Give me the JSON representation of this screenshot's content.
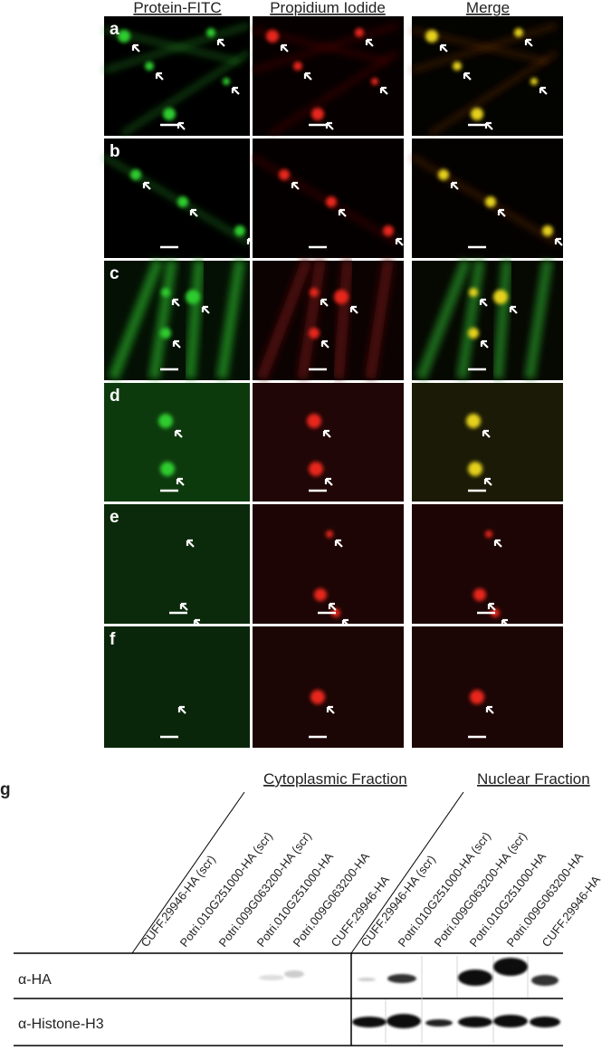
{
  "columns": [
    "Protein-FITC",
    "Propidium Iodide",
    "Merge"
  ],
  "rows": [
    "a",
    "b",
    "c",
    "d",
    "e",
    "f"
  ],
  "blot": {
    "label": "g",
    "fractions": [
      "Cytoplasmic Fraction",
      "Nuclear Fraction"
    ],
    "lanes": [
      "CUFF.29946-HA (scr)",
      "Potri.010G251000-HA (scr)",
      "Potri.009G063200-HA (scr)",
      "Potri.010G251000-HA",
      "Potri.009G063200-HA",
      "CUFF.29946-HA",
      "CUFF.29946-HA (scr)",
      "Potri.010G251000-HA (scr)",
      "Potri.009G063200-HA (scr)",
      "Potri.010G251000-HA",
      "Potri.009G063200-HA",
      "CUFF.29946-HA"
    ],
    "antibodies": [
      "α-HA",
      "α-Histone-H3"
    ]
  }
}
